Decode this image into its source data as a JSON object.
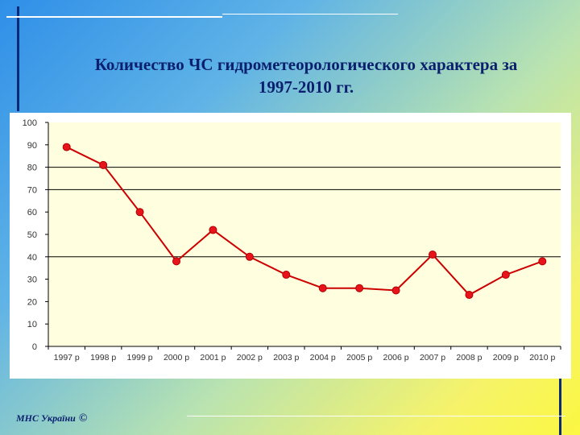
{
  "slide": {
    "title_line1": "Количество ЧС гидрометеорологического характера за",
    "title_line2": "1997-2010 гг.",
    "footer": "МНС України",
    "copyright_symbol": "©"
  },
  "colors": {
    "line": "#cc0000",
    "marker": "#e8141b",
    "plot_bg": "#ffffe0",
    "grid": "#000000"
  },
  "chart_data": {
    "type": "line",
    "categories": [
      "1997 р",
      "1998 р",
      "1999 р",
      "2000 р",
      "2001 р",
      "2002 р",
      "2003 р",
      "2004 р",
      "2005 р",
      "2006 р",
      "2007 р",
      "2008 р",
      "2009 р",
      "2010 р"
    ],
    "values": [
      89,
      81,
      60,
      38,
      52,
      40,
      32,
      26,
      26,
      25,
      41,
      23,
      32,
      38
    ],
    "ylim": [
      0,
      100
    ],
    "yticks": [
      "0",
      "10",
      "20",
      "30",
      "40",
      "50",
      "60",
      "70",
      "80",
      "90",
      "100"
    ],
    "gridlines_at": [
      40,
      70,
      80
    ],
    "title": "",
    "xlabel": "",
    "ylabel": "",
    "legend": "none"
  }
}
